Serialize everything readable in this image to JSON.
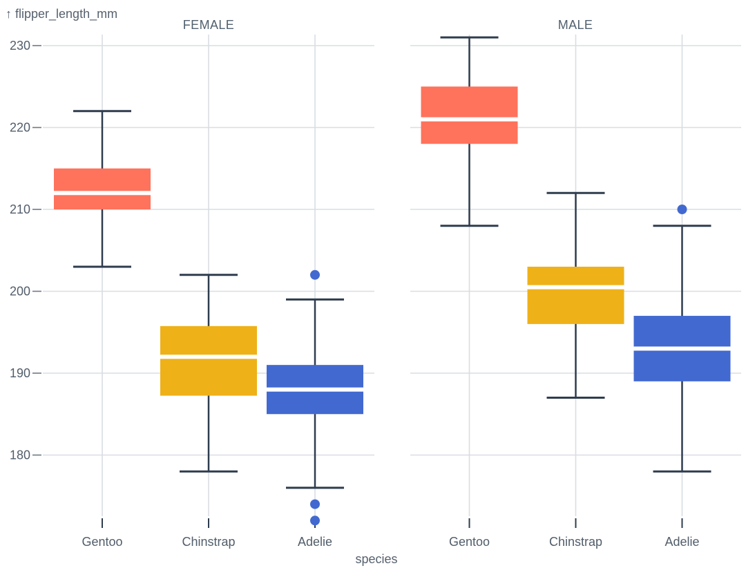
{
  "chart_data": {
    "type": "boxplot",
    "title": "",
    "dataset_hint": "flipper_length_mm by species, faceted by sex",
    "y_axis": {
      "label": "↑ flipper_length_mm",
      "ticks": [
        180,
        190,
        200,
        210,
        220,
        230
      ],
      "ylim": [
        171.5,
        231.5
      ],
      "grid": true
    },
    "x_axis": {
      "label": "species",
      "categories": [
        "Gentoo",
        "Chinstrap",
        "Adelie"
      ],
      "grid": true
    },
    "legend": "none",
    "facets": [
      {
        "label": "FEMALE",
        "boxes": [
          {
            "species": "Gentoo",
            "color": "#ff725c",
            "whisker_low": 203,
            "q1": 210,
            "median": 212,
            "q3": 215,
            "whisker_high": 222,
            "outliers": []
          },
          {
            "species": "Chinstrap",
            "color": "#efb118",
            "whisker_low": 178,
            "q1": 187.25,
            "median": 192,
            "q3": 195.75,
            "whisker_high": 202,
            "outliers": []
          },
          {
            "species": "Adelie",
            "color": "#4269d0",
            "whisker_low": 176,
            "q1": 185,
            "median": 188,
            "q3": 191,
            "whisker_high": 199,
            "outliers": [
              202,
              174,
              172
            ]
          }
        ]
      },
      {
        "label": "MALE",
        "boxes": [
          {
            "species": "Gentoo",
            "color": "#ff725c",
            "whisker_low": 208,
            "q1": 218,
            "median": 221,
            "q3": 225,
            "whisker_high": 231,
            "outliers": []
          },
          {
            "species": "Chinstrap",
            "color": "#efb118",
            "whisker_low": 187,
            "q1": 196,
            "median": 200.5,
            "q3": 203,
            "whisker_high": 212,
            "outliers": []
          },
          {
            "species": "Adelie",
            "color": "#4269d0",
            "whisker_low": 178,
            "q1": 189,
            "median": 193,
            "q3": 197,
            "whisker_high": 208,
            "outliers": [
              210
            ]
          }
        ]
      }
    ],
    "colors": {
      "gentoo": "#ff725c",
      "chinstrap": "#efb118",
      "adelie": "#4269d0",
      "whisker_stroke": "#2e3c4e",
      "gridline": "#d9dde2",
      "tick_dash": "#6e7884",
      "text": "#515d6a",
      "median_line": "#ffffff",
      "background": "#ffffff"
    }
  }
}
